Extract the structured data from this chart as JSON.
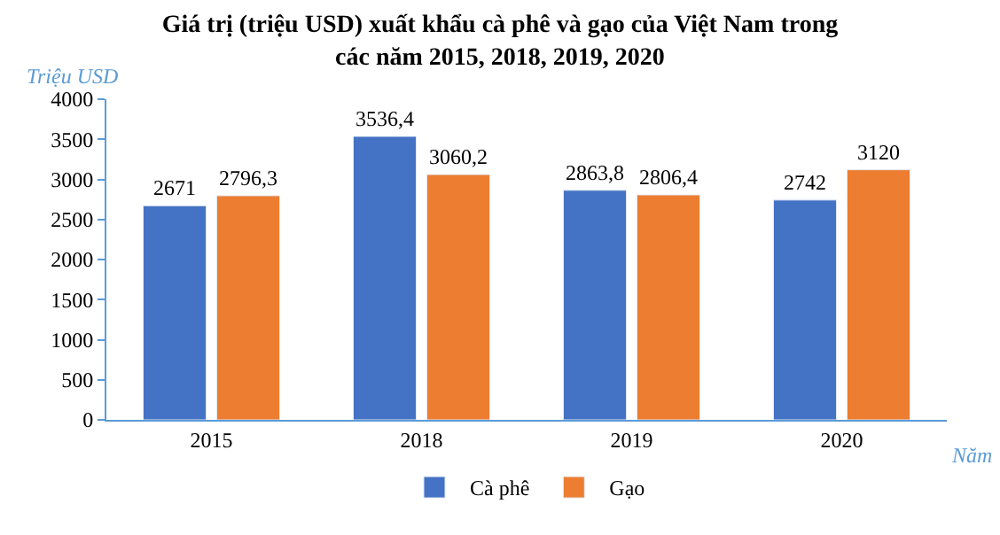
{
  "chart_data": {
    "type": "bar",
    "title": "Giá trị (triệu USD) xuất khẩu cà phê và gạo của Việt Nam trong\ncác năm 2015, 2018, 2019, 2020",
    "xlabel": "Năm",
    "ylabel": "Triệu USD",
    "categories": [
      "2015",
      "2018",
      "2019",
      "2020"
    ],
    "series": [
      {
        "name": "Cà phê",
        "color": "#4472c4",
        "values": [
          2671,
          3536.4,
          2863.8,
          2742
        ],
        "value_labels": [
          "2671",
          "3536,4",
          "2863,8",
          "2742"
        ]
      },
      {
        "name": "Gạo",
        "color": "#ed7d31",
        "values": [
          2796.3,
          3060.2,
          2806.4,
          3120
        ],
        "value_labels": [
          "2796,3",
          "3060,2",
          "2806,4",
          "3120"
        ]
      }
    ],
    "ylim": [
      0,
      4000
    ],
    "yticks": [
      0,
      500,
      1000,
      1500,
      2000,
      2500,
      3000,
      3500,
      4000
    ],
    "legend": "bottom"
  }
}
